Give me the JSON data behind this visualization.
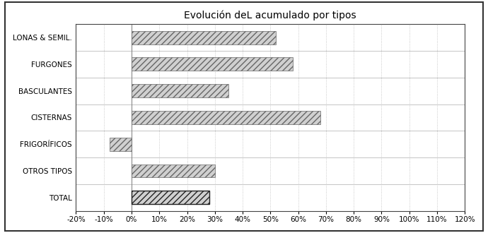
{
  "title": "Evolución deL acumulado por tipos",
  "categories": [
    "TOTAL",
    "OTROS TIPOS",
    "FRIGORÍFICOS",
    "CISTERNAS",
    "BASCULANTES",
    "FURGONES",
    "LONAS & SEMIL."
  ],
  "values": [
    28,
    30,
    -8,
    68,
    35,
    58,
    52
  ],
  "xlim": [
    -20,
    120
  ],
  "xticks": [
    -20,
    -10,
    0,
    10,
    20,
    30,
    40,
    50,
    60,
    70,
    80,
    90,
    100,
    110,
    120
  ],
  "bar_color": "#d0d0d0",
  "total_bar_color": "#c8c8c8",
  "bar_edgecolor": "#666666",
  "total_edgecolor": "#222222",
  "hatch": "////",
  "background_color": "#ffffff",
  "plot_bg": "#ffffff",
  "title_fontsize": 10,
  "label_fontsize": 7.5,
  "tick_fontsize": 7.5,
  "grid_color": "#bbbbbb",
  "hline_color": "#bbbbbb",
  "bar_height": 0.5
}
